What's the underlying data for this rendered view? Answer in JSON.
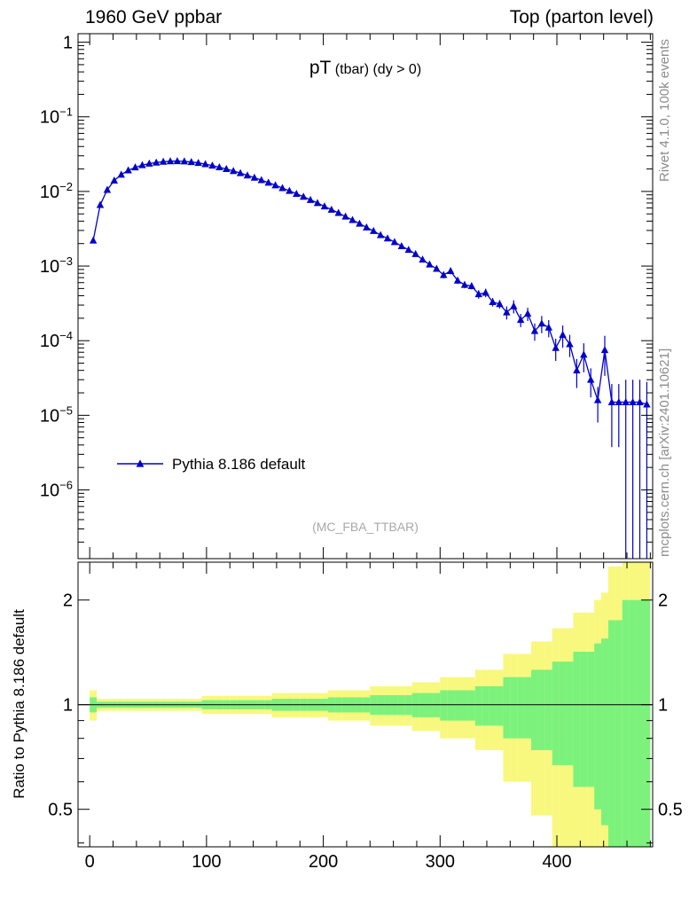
{
  "header": {
    "left": "1960 GeV ppbar",
    "right": "Top (parton level)"
  },
  "side_texts": {
    "top_right": "Rivet 4.1.0, 100k events",
    "bottom_right": "mcplots.cern.ch [arXiv:2401.10621]"
  },
  "colors": {
    "series": "#0000cc",
    "band_outer": "#f8f87e",
    "band_inner": "#7cf27c",
    "watermark": "#a8a8a8",
    "side_text": "#8c8c8c"
  },
  "chart_data": {
    "type": "line",
    "title": "pT (tbar) (dy > 0)",
    "title_main": "pT",
    "title_rest": " (tbar) (dy > 0)",
    "watermark": "(MC_FBA_TTBAR)",
    "bin_width": 6,
    "legend": [
      {
        "label": "Pythia 8.186 default",
        "color": "#0000cc",
        "marker": "filled-triangle-up"
      }
    ],
    "axes": {
      "x": {
        "range": [
          -10,
          482
        ],
        "ticks": [
          0,
          100,
          200,
          300,
          400
        ],
        "tick_labels": [
          "0",
          "100",
          "200",
          "300",
          "400"
        ],
        "minor_step": 20
      },
      "y_main": {
        "scale": "log",
        "range": [
          1.2e-07,
          1.3
        ],
        "decades": [
          0,
          -1,
          -2,
          -3,
          -4,
          -5,
          -6
        ]
      },
      "y_ratio": {
        "scale": "log",
        "range": [
          0.39,
          2.57
        ],
        "ticks": [
          0.5,
          1,
          2
        ],
        "tick_labels": [
          "0.5",
          "1",
          "2"
        ],
        "minor": [
          0.4,
          0.6,
          0.7,
          0.8,
          0.9
        ]
      }
    },
    "x": [
      3,
      9,
      15,
      21,
      27,
      33,
      39,
      45,
      51,
      57,
      63,
      69,
      75,
      81,
      87,
      93,
      99,
      105,
      111,
      117,
      123,
      129,
      135,
      141,
      147,
      153,
      159,
      165,
      171,
      177,
      183,
      189,
      195,
      201,
      207,
      213,
      219,
      225,
      231,
      237,
      243,
      249,
      255,
      261,
      267,
      273,
      279,
      285,
      291,
      297,
      303,
      309,
      315,
      321,
      327,
      333,
      339,
      345,
      351,
      357,
      363,
      369,
      375,
      381,
      387,
      393,
      399,
      405,
      411,
      417,
      423,
      429,
      435,
      441,
      447,
      453,
      459,
      465,
      471,
      477
    ],
    "series": [
      {
        "name": "Pythia 8.186 default",
        "values": [
          0.0022,
          0.0066,
          0.0105,
          0.014,
          0.0168,
          0.0192,
          0.021,
          0.0225,
          0.0236,
          0.0244,
          0.025,
          0.0254,
          0.0255,
          0.0253,
          0.0248,
          0.0241,
          0.0232,
          0.0222,
          0.0211,
          0.02,
          0.0188,
          0.0176,
          0.0164,
          0.0153,
          0.0142,
          0.0131,
          0.0121,
          0.0111,
          0.0102,
          0.0093,
          0.0085,
          0.0077,
          0.007,
          0.0063,
          0.0057,
          0.00515,
          0.0046,
          0.00415,
          0.0037,
          0.0033,
          0.00295,
          0.0026,
          0.00235,
          0.0021,
          0.00185,
          0.00165,
          0.00145,
          0.00122,
          0.00105,
          0.00092,
          0.00076,
          0.00086,
          0.00064,
          0.00056,
          0.00054,
          0.00042,
          0.00044,
          0.00033,
          0.00031,
          0.00024,
          0.00029,
          0.00019,
          0.00023,
          0.000135,
          0.00017,
          0.00015,
          8e-05,
          0.00012,
          9e-05,
          4e-05,
          6.5e-05,
          3e-05,
          1.6e-05,
          7.5e-05,
          1.5e-05,
          1.5e-05,
          1.5e-05,
          1.5e-05,
          1.5e-05,
          1.4e-05
        ],
        "rel_err": [
          0.05,
          0.02,
          0.02,
          0.02,
          0.02,
          0.02,
          0.02,
          0.02,
          0.02,
          0.02,
          0.02,
          0.02,
          0.02,
          0.02,
          0.02,
          0.02,
          0.03,
          0.03,
          0.03,
          0.03,
          0.03,
          0.03,
          0.03,
          0.03,
          0.03,
          0.03,
          0.04,
          0.04,
          0.04,
          0.04,
          0.04,
          0.04,
          0.04,
          0.04,
          0.05,
          0.05,
          0.05,
          0.05,
          0.05,
          0.05,
          0.065,
          0.065,
          0.065,
          0.065,
          0.065,
          0.065,
          0.08,
          0.08,
          0.08,
          0.08,
          0.1,
          0.1,
          0.1,
          0.1,
          0.1,
          0.13,
          0.13,
          0.13,
          0.13,
          0.2,
          0.2,
          0.2,
          0.2,
          0.26,
          0.26,
          0.26,
          0.33,
          0.33,
          0.33,
          0.42,
          0.42,
          0.42,
          0.5,
          0.55,
          0.75,
          0.75,
          1.0,
          1.0,
          1.0,
          1.0
        ]
      }
    ],
    "ratio": {
      "ylabel": "Ratio to Pythia 8.186 default",
      "center": 1,
      "band_inner_rel_scale": 1,
      "band_outer_rel_scale": 2
    }
  }
}
